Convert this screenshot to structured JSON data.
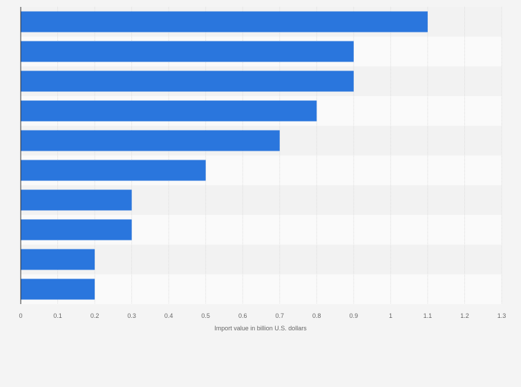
{
  "chart_data": {
    "type": "bar",
    "orientation": "horizontal",
    "categories": [
      "",
      "",
      "",
      "",
      "",
      "",
      "",
      "",
      "",
      ""
    ],
    "values": [
      1.1,
      0.9,
      0.9,
      0.8,
      0.7,
      0.5,
      0.3,
      0.3,
      0.2,
      0.2
    ],
    "title": "",
    "xlabel": "Import value in billion U.S. dollars",
    "ylabel": "",
    "xlim": [
      0,
      1.3
    ],
    "xticks": [
      "0",
      "0.1",
      "0.2",
      "0.3",
      "0.4",
      "0.5",
      "0.6",
      "0.7",
      "0.8",
      "0.9",
      "1",
      "1.1",
      "1.2",
      "1.3"
    ],
    "grid": true,
    "legend": "none",
    "bar_color": "#2a76dd",
    "band_colors": [
      "#f2f2f2",
      "#fafafa"
    ],
    "gridline_color": "#dcdcdc",
    "axis_color": "#333333",
    "background": "#f4f4f4"
  }
}
